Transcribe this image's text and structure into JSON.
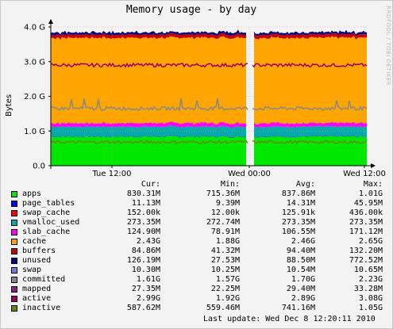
{
  "title": "Memory usage - by day",
  "watermark": "RRDTOOL / TOBI OETIKER",
  "chart_data": {
    "type": "area",
    "stacked": true,
    "ylabel": "Bytes",
    "ylim": [
      0,
      4.0
    ],
    "yticks": [
      "0.0",
      "1.0 G",
      "2.0 G",
      "3.0 G",
      "4.0 G"
    ],
    "xticks": [
      "Tue 12:00",
      "Wed 00:00",
      "Wed 12:00"
    ],
    "grid": true,
    "gap": "around Wed 00:00",
    "unit_note": "values in GB",
    "series": [
      {
        "name": "apps",
        "color": "#00e800",
        "cur": "830.31M",
        "min": "715.36M",
        "avg": "837.86M",
        "max": "1.01G",
        "level": 0.84
      },
      {
        "name": "page_tables",
        "color": "#0000ff",
        "cur": "11.13M",
        "min": "9.39M",
        "avg": "14.31M",
        "max": "45.95M",
        "level": 0.011
      },
      {
        "name": "swap_cache",
        "color": "#ff0000",
        "cur": "152.00k",
        "min": "12.00k",
        "avg": "125.91k",
        "max": "436.00k",
        "level": 0.0001
      },
      {
        "name": "vmalloc_used",
        "color": "#00aaaa",
        "cur": "273.35M",
        "min": "272.74M",
        "avg": "273.35M",
        "max": "273.35M",
        "level": 0.273
      },
      {
        "name": "slab_cache",
        "color": "#ff00ff",
        "cur": "124.90M",
        "min": "78.91M",
        "avg": "106.55M",
        "max": "171.12M",
        "level": 0.107
      },
      {
        "name": "cache",
        "color": "#ffa500",
        "cur": "2.43G",
        "min": "1.88G",
        "avg": "2.46G",
        "max": "2.65G",
        "level": 2.46
      },
      {
        "name": "buffers",
        "color": "#cc0000",
        "cur": "84.86M",
        "min": "41.32M",
        "avg": "94.40M",
        "max": "132.20M",
        "level": 0.094
      },
      {
        "name": "unused",
        "color": "#000080",
        "cur": "126.19M",
        "min": "27.53M",
        "avg": "88.50M",
        "max": "772.52M",
        "level": 0.089
      },
      {
        "name": "swap",
        "color": "#6a7fd8",
        "cur": "10.30M",
        "min": "10.25M",
        "avg": "10.54M",
        "max": "10.65M"
      },
      {
        "name": "committed",
        "color": "#888888",
        "cur": "1.61G",
        "min": "1.57G",
        "avg": "1.70G",
        "max": "2.23G"
      },
      {
        "name": "mapped",
        "color": "#882288",
        "cur": "27.35M",
        "min": "22.25M",
        "avg": "29.40M",
        "max": "33.28M"
      },
      {
        "name": "active",
        "color": "#990066",
        "cur": "2.99G",
        "min": "1.92G",
        "avg": "2.89G",
        "max": "3.08G"
      },
      {
        "name": "inactive",
        "color": "#668800",
        "cur": "587.62M",
        "min": "559.46M",
        "avg": "741.16M",
        "max": "1.05G"
      }
    ],
    "lines": {
      "active": 2.9,
      "committed": 1.65,
      "inactive": 0.68
    }
  },
  "legend": {
    "headers": {
      "cur": "Cur:",
      "min": "Min:",
      "avg": "Avg:",
      "max": "Max:"
    }
  },
  "footer": "Last update: Wed Dec  8 12:20:11 2010"
}
